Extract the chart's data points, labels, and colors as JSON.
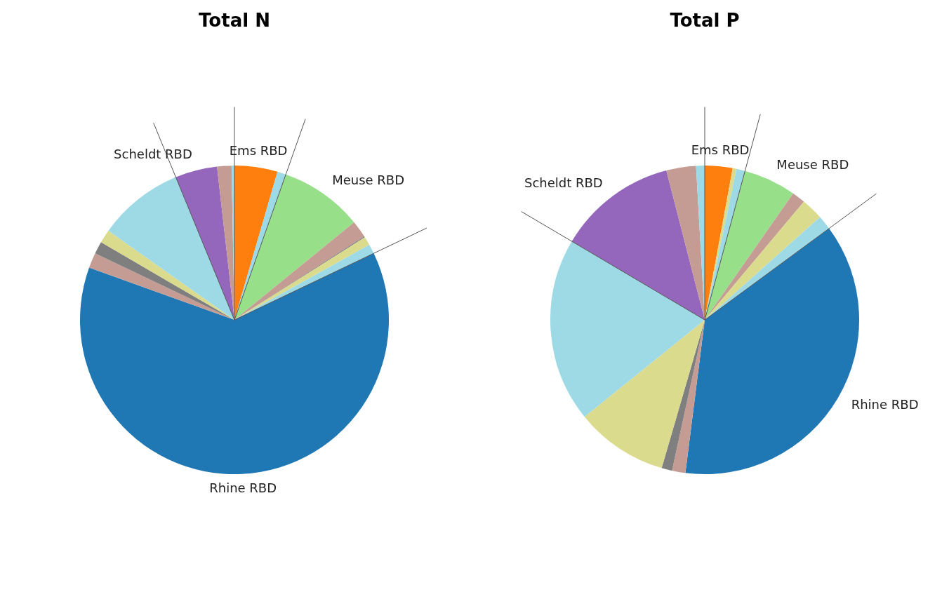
{
  "chart_data": [
    {
      "type": "pie",
      "title": "Total N",
      "categories": [
        "Ems RBD",
        null,
        "Meuse RBD",
        null,
        null,
        null,
        null,
        "Rhine RBD",
        null,
        null,
        null,
        null,
        "Scheldt RBD",
        null,
        null
      ],
      "values": [
        4.5,
        0.9,
        8.7,
        1.8,
        0.1,
        0.9,
        1.0,
        62.6,
        1.6,
        1.3,
        1.4,
        9.0,
        4.4,
        1.5,
        0.3
      ],
      "colors": [
        "#ff7f0e",
        "#9edae5",
        "#98df8a",
        "#c49c94",
        "#7f7f7f",
        "#dbdb8d",
        "#9edae5",
        "#1f77b4",
        "#c49c94",
        "#7f7f7f",
        "#dbdb8d",
        "#9edae5",
        "#9467bd",
        "#c49c94",
        "#9edae5"
      ]
    },
    {
      "type": "pie",
      "title": "Total P",
      "categories": [
        "Ems RBD",
        null,
        null,
        "Meuse RBD",
        null,
        null,
        null,
        "Rhine RBD",
        null,
        null,
        null,
        null,
        "Scheldt RBD",
        null,
        null
      ],
      "values": [
        2.9,
        0.4,
        0.9,
        5.5,
        1.4,
        2.3,
        1.5,
        37.1,
        1.4,
        1.1,
        9.7,
        19.3,
        12.5,
        3.1,
        0.9
      ],
      "colors": [
        "#ff7f0e",
        "#dbdb8d",
        "#9edae5",
        "#98df8a",
        "#c49c94",
        "#dbdb8d",
        "#9edae5",
        "#1f77b4",
        "#c49c94",
        "#7f7f7f",
        "#dbdb8d",
        "#9edae5",
        "#9467bd",
        "#c49c94",
        "#9edae5"
      ]
    }
  ]
}
